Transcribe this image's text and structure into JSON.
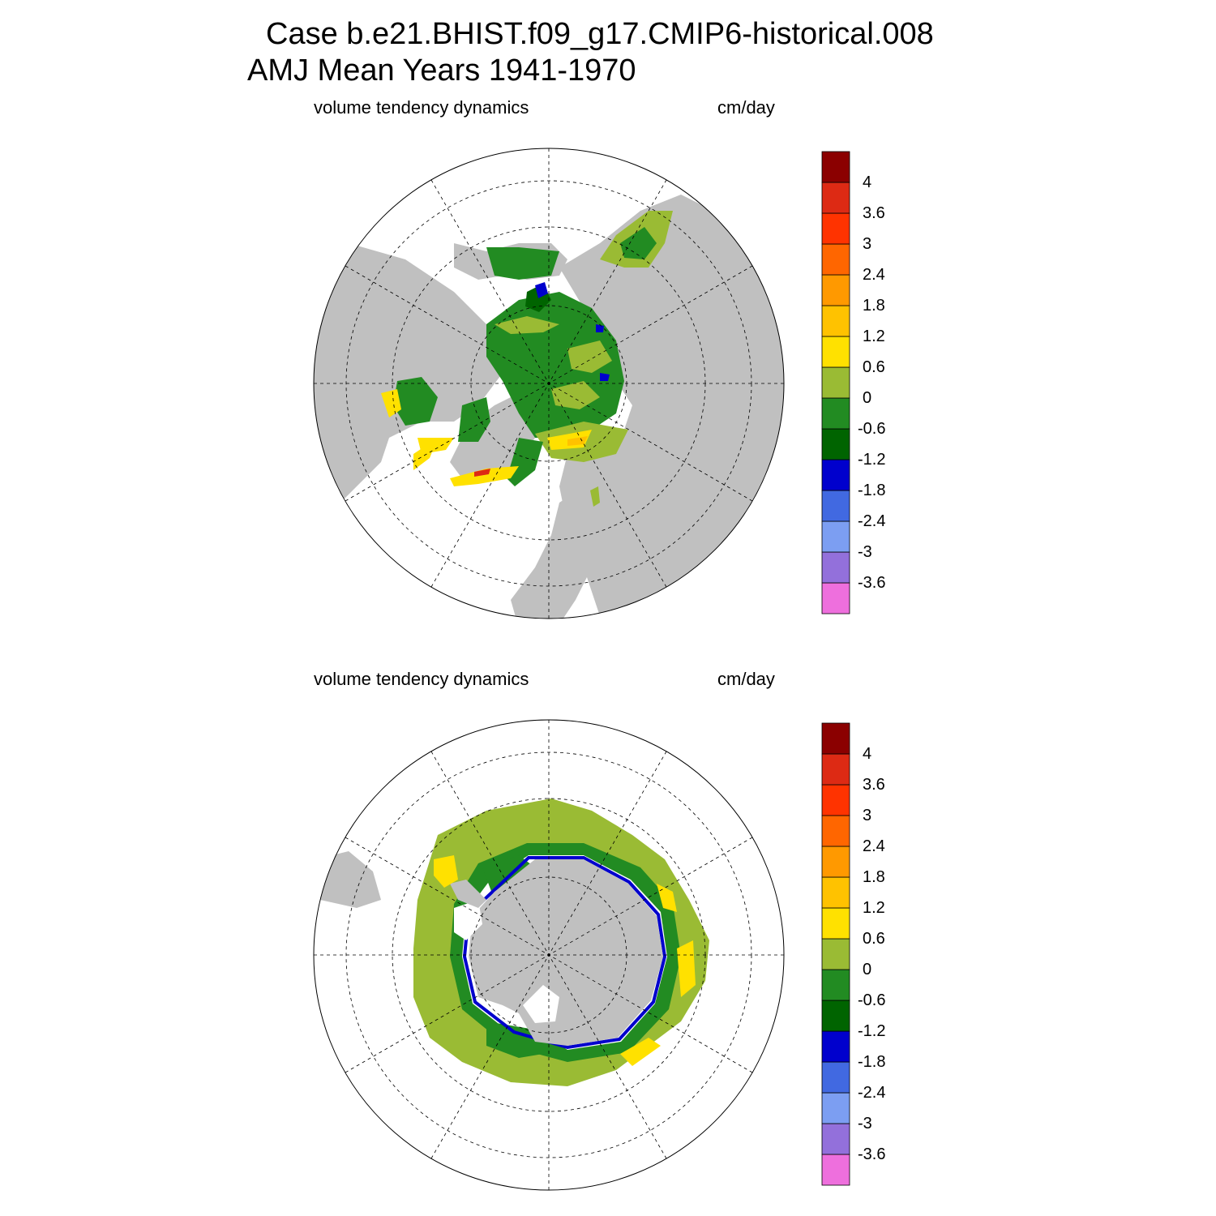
{
  "header": {
    "title_line1": "Case b.e21.BHIST.f09_g17.CMIP6-historical.008",
    "title_line2": "AMJ Mean   Years 1941-1970"
  },
  "colors": {
    "land": "#c0c0c0",
    "ocean_no_ice": "#ffffff",
    "graticule": "#000000",
    "scale": [
      "#ee6fdd",
      "#9370db",
      "#7c9ef2",
      "#4169e1",
      "#0000cd",
      "#006400",
      "#228b22",
      "#9abb34",
      "#ffe100",
      "#ffc200",
      "#ff9900",
      "#ff6600",
      "#ff3300",
      "#dd2a14",
      "#8b0000"
    ]
  },
  "colorbar": {
    "labels": [
      "4",
      "3.6",
      "3",
      "2.4",
      "1.8",
      "1.2",
      "0.6",
      "0",
      "-0.6",
      "-1.2",
      "-1.8",
      "-2.4",
      "-3",
      "-3.6"
    ]
  },
  "panels": [
    {
      "id": "north",
      "hemisphere": "Northern",
      "left_label": "volume tendency dynamics",
      "right_label": "cm/day"
    },
    {
      "id": "south",
      "hemisphere": "Southern",
      "left_label": "volume tendency dynamics",
      "right_label": "cm/day"
    }
  ]
}
